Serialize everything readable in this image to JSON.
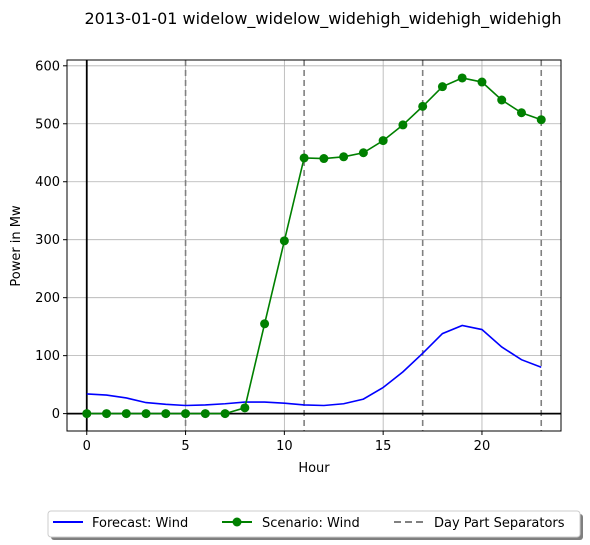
{
  "chart_data": {
    "type": "line",
    "title": "2013-01-01 widelow_widelow_widehigh_widehigh_widehigh",
    "xlabel": "Hour",
    "ylabel": "Power in Mw",
    "xlim": [
      -1,
      24
    ],
    "ylim": [
      -30,
      610
    ],
    "xticks": [
      0,
      5,
      10,
      15,
      20
    ],
    "yticks": [
      0,
      100,
      200,
      300,
      400,
      500,
      600
    ],
    "grid": true,
    "legend_position": "bottom-center",
    "x": [
      0,
      1,
      2,
      3,
      4,
      5,
      6,
      7,
      8,
      9,
      10,
      11,
      12,
      13,
      14,
      15,
      16,
      17,
      18,
      19,
      20,
      21,
      22,
      23
    ],
    "series": [
      {
        "name": "Forecast: Wind",
        "color": "#0000ff",
        "marker": "none",
        "values": [
          34,
          32,
          27,
          19,
          16,
          14,
          15,
          17,
          20,
          20,
          18,
          15,
          14,
          17,
          25,
          45,
          72,
          104,
          138,
          152,
          145,
          115,
          93,
          80
        ]
      },
      {
        "name": "Scenario: Wind",
        "color": "#008000",
        "marker": "circle",
        "values": [
          0,
          0,
          0,
          0,
          0,
          0,
          0,
          0,
          10,
          155,
          298,
          441,
          440,
          443,
          450,
          471,
          498,
          530,
          564,
          579,
          572,
          541,
          519,
          507
        ]
      }
    ],
    "day_part_separators": {
      "name": "Day Part Separators",
      "color": "#808080",
      "x": [
        5,
        11,
        17,
        23
      ]
    },
    "reference_lines": {
      "x": 0,
      "y": 0,
      "color": "#000000"
    }
  }
}
